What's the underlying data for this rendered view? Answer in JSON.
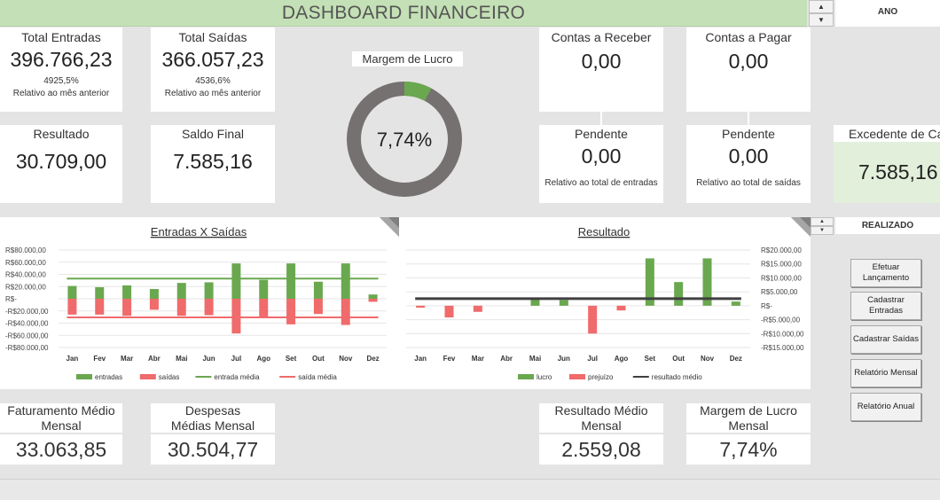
{
  "header": {
    "title": "DASHBOARD FINANCEIRO"
  },
  "spinners": {
    "up": "▲",
    "down": "▼"
  },
  "year": {
    "label": "ANO"
  },
  "realizado": {
    "label": "REALIZADO"
  },
  "cards": {
    "total_entradas": {
      "label": "Total Entradas",
      "value": "396.766,23",
      "pct": "4925,5%",
      "note": "Relativo ao mês anterior"
    },
    "total_saidas": {
      "label": "Total Saídas",
      "value": "366.057,23",
      "pct": "4536,6%",
      "note": "Relativo ao mês anterior"
    },
    "resultado": {
      "label": "Resultado",
      "value": "30.709,00"
    },
    "saldo_final": {
      "label": "Saldo Final",
      "value": "7.585,16"
    },
    "margem": {
      "label": "Margem de Lucro",
      "value": "7,74%",
      "fraction": 0.0774
    },
    "contas_receber": {
      "label": "Contas a Receber",
      "value": "0,00"
    },
    "contas_pagar": {
      "label": "Contas a Pagar",
      "value": "0,00"
    },
    "pendente_receber": {
      "label": "Pendente",
      "value": "0,00",
      "note": "Relativo ao total de entradas"
    },
    "pendente_pagar": {
      "label": "Pendente",
      "value": "0,00",
      "note": "Relativo ao total de saídas"
    },
    "excedente": {
      "label": "Excedente de Caixa",
      "value": "7.585,16"
    },
    "fat_medio": {
      "label": "Faturamento Médio Mensal",
      "value": "33.063,85"
    },
    "desp_medias": {
      "label": "Despesas Médias Mensal",
      "value": "30.504,77"
    },
    "res_medio": {
      "label": "Resultado Médio Mensal",
      "value": "2.559,08"
    },
    "margem_lucro_mensal": {
      "label": "Margem de Lucro Mensal",
      "value": "7,74%"
    }
  },
  "buttons": {
    "efetuar": "Efetuar Lançamento",
    "cad_entradas": "Cadastrar Entradas",
    "cad_saidas": "Cadastrar Saídas",
    "rel_mensal": "Relatório Mensal",
    "rel_anual": "Relatório Anual"
  },
  "colors": {
    "green": "#6aa84f",
    "red": "#f06b6b",
    "donut_gray": "#767171",
    "header_green": "#c4e0b6",
    "excedente_bg": "#e2efda"
  },
  "chart_data": [
    {
      "type": "bar",
      "title": "Entradas X Saídas",
      "categories": [
        "Jan",
        "Fev",
        "Mar",
        "Abr",
        "Mai",
        "Jun",
        "Jul",
        "Ago",
        "Set",
        "Out",
        "Nov",
        "Dez"
      ],
      "series": [
        {
          "name": "entradas",
          "values": [
            21000,
            19000,
            22000,
            16000,
            26000,
            27000,
            58000,
            31000,
            58000,
            28000,
            58000,
            7000
          ]
        },
        {
          "name": "saídas",
          "values": [
            -26000,
            -26000,
            -28000,
            -18000,
            -28000,
            -27000,
            -57000,
            -32000,
            -42000,
            -25000,
            -43000,
            -5000
          ]
        }
      ],
      "lines": [
        {
          "name": "entrada média",
          "value": 33063.85
        },
        {
          "name": "saída média",
          "value": -30504.77
        }
      ],
      "ylim": [
        -80000,
        80000
      ],
      "yticks": [
        "R$80.000,00",
        "R$60.000,00",
        "R$40.000,00",
        "R$20.000,00",
        "R$-",
        "-R$20.000,00",
        "-R$40.000,00",
        "-R$60.000,00",
        "-R$80.000,00"
      ],
      "grid": true,
      "legend": "bottom"
    },
    {
      "type": "bar",
      "title": "Resultado",
      "categories": [
        "Jan",
        "Fev",
        "Mar",
        "Abr",
        "Mai",
        "Jun",
        "Jul",
        "Ago",
        "Set",
        "Out",
        "Nov",
        "Dez"
      ],
      "series": [
        {
          "name": "lucro",
          "values": [
            0,
            0,
            0,
            0,
            2200,
            2000,
            0,
            0,
            17000,
            8500,
            17000,
            1500
          ]
        },
        {
          "name": "prejuízo",
          "values": [
            -700,
            -4200,
            -2200,
            0,
            0,
            0,
            -10000,
            -1700,
            0,
            0,
            0,
            0
          ]
        }
      ],
      "lines": [
        {
          "name": "resultado médio",
          "value": 2559.08
        }
      ],
      "ylim": [
        -15000,
        20000
      ],
      "yticks": [
        "R$20.000,00",
        "R$15.000,00",
        "R$10.000,00",
        "R$5.000,00",
        "R$-",
        "-R$5.000,00",
        "-R$10.000,00",
        "-R$15.000,00"
      ],
      "grid": true,
      "legend": "bottom"
    }
  ]
}
